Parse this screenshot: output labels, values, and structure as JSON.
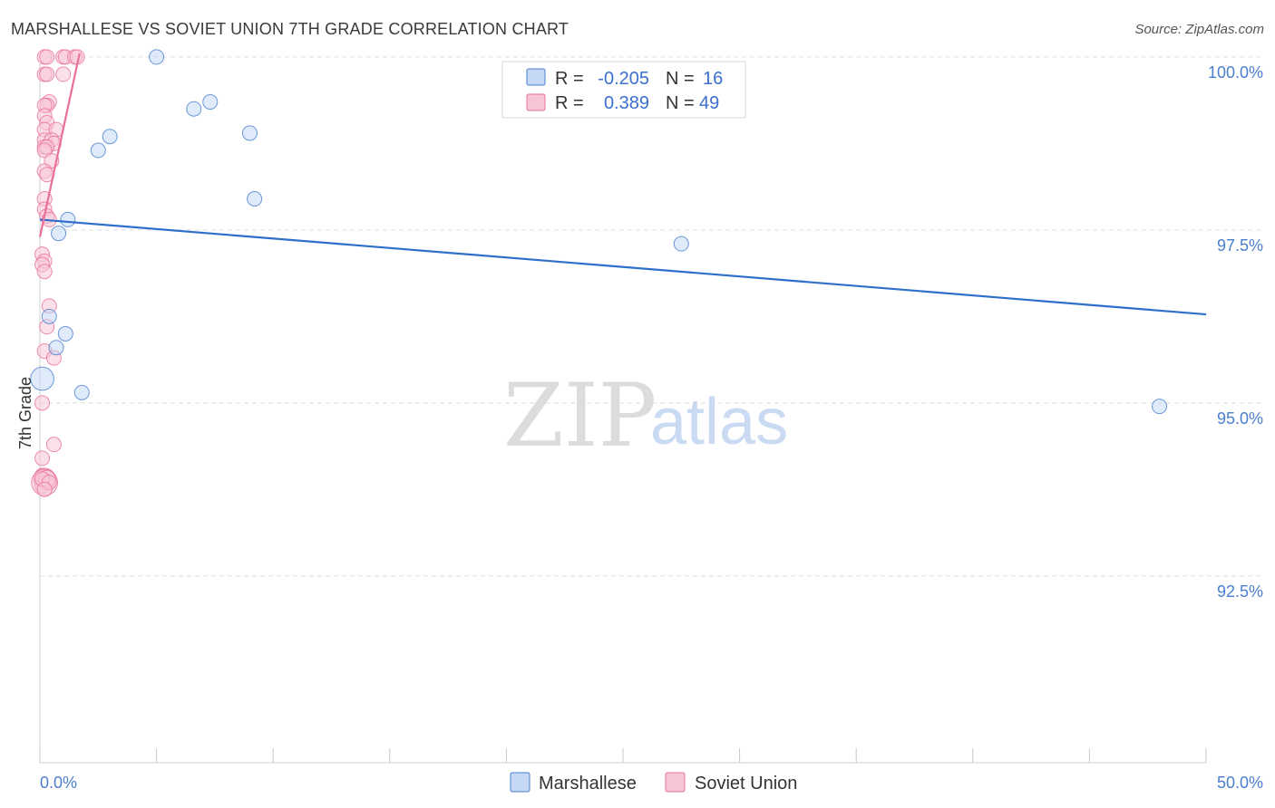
{
  "header": {
    "title": "MARSHALLESE VS SOVIET UNION 7TH GRADE CORRELATION CHART",
    "source": "Source: ZipAtlas.com"
  },
  "watermark": {
    "zip": "ZIP",
    "atlas": "atlas"
  },
  "colors": {
    "marshallese": "#4a7fd0",
    "marshallese_fill": "#c5d8f5",
    "soviet": "#e8709a",
    "soviet_fill": "#f7c6d6",
    "axis_text": "#4a7fd0",
    "grid": "#dddddd"
  },
  "legend_box": {
    "rows": [
      {
        "r_label": "R =",
        "r_value": "-0.205",
        "n_label": "N =",
        "n_value": "16"
      },
      {
        "r_label": "R =",
        "r_value": "0.389",
        "n_label": "N =",
        "n_value": "49"
      }
    ]
  },
  "bottom_legend": [
    "Marshallese",
    "Soviet Union"
  ],
  "chart_data": {
    "type": "scatter",
    "title": "MARSHALLESE VS SOVIET UNION 7TH GRADE CORRELATION CHART",
    "xlabel": "",
    "ylabel": "7th Grade",
    "xlim": [
      0,
      50
    ],
    "ylim": [
      89.8,
      100.3
    ],
    "x_tick_labels": [
      "0.0%",
      "50.0%"
    ],
    "y_ticks": [
      92.5,
      95.0,
      97.5,
      100.0
    ],
    "y_tick_labels": [
      "92.5%",
      "95.0%",
      "97.5%",
      "100.0%"
    ],
    "grid": true,
    "legend_position": "bottom",
    "series": [
      {
        "name": "Marshallese",
        "R": -0.205,
        "N": 16,
        "trend": {
          "x": [
            0.0,
            50.0
          ],
          "y": [
            97.65,
            96.28
          ]
        },
        "points": [
          {
            "x": 5.0,
            "y": 100.0,
            "s": 1
          },
          {
            "x": 6.6,
            "y": 99.25,
            "s": 1
          },
          {
            "x": 7.3,
            "y": 99.35,
            "s": 1
          },
          {
            "x": 2.5,
            "y": 98.65,
            "s": 1
          },
          {
            "x": 3.0,
            "y": 98.85,
            "s": 1
          },
          {
            "x": 9.0,
            "y": 98.9,
            "s": 1
          },
          {
            "x": 9.2,
            "y": 97.95,
            "s": 1
          },
          {
            "x": 1.2,
            "y": 97.65,
            "s": 1
          },
          {
            "x": 0.8,
            "y": 97.45,
            "s": 1
          },
          {
            "x": 27.5,
            "y": 97.3,
            "s": 1
          },
          {
            "x": 0.4,
            "y": 96.25,
            "s": 1
          },
          {
            "x": 1.1,
            "y": 96.0,
            "s": 1
          },
          {
            "x": 0.7,
            "y": 95.8,
            "s": 1
          },
          {
            "x": 0.1,
            "y": 95.35,
            "s": 1.6
          },
          {
            "x": 1.8,
            "y": 95.15,
            "s": 1
          },
          {
            "x": 48.0,
            "y": 94.95,
            "s": 1
          }
        ]
      },
      {
        "name": "Soviet Union",
        "R": 0.389,
        "N": 49,
        "trend": {
          "x": [
            0.0,
            1.7
          ],
          "y": [
            97.4,
            100.05
          ]
        },
        "points": [
          {
            "x": 0.2,
            "y": 100.0,
            "s": 1
          },
          {
            "x": 0.3,
            "y": 100.0,
            "s": 1
          },
          {
            "x": 1.0,
            "y": 100.0,
            "s": 1
          },
          {
            "x": 1.1,
            "y": 100.0,
            "s": 1
          },
          {
            "x": 1.5,
            "y": 100.0,
            "s": 1
          },
          {
            "x": 1.6,
            "y": 100.0,
            "s": 1
          },
          {
            "x": 0.2,
            "y": 99.75,
            "s": 1
          },
          {
            "x": 0.3,
            "y": 99.75,
            "s": 1
          },
          {
            "x": 1.0,
            "y": 99.75,
            "s": 1
          },
          {
            "x": 0.4,
            "y": 99.35,
            "s": 1
          },
          {
            "x": 0.3,
            "y": 99.3,
            "s": 1
          },
          {
            "x": 0.2,
            "y": 99.3,
            "s": 1
          },
          {
            "x": 0.2,
            "y": 99.15,
            "s": 1
          },
          {
            "x": 0.3,
            "y": 99.05,
            "s": 1
          },
          {
            "x": 0.2,
            "y": 98.95,
            "s": 1
          },
          {
            "x": 0.7,
            "y": 98.95,
            "s": 1
          },
          {
            "x": 0.2,
            "y": 98.8,
            "s": 1
          },
          {
            "x": 0.5,
            "y": 98.8,
            "s": 1
          },
          {
            "x": 0.6,
            "y": 98.75,
            "s": 1
          },
          {
            "x": 0.2,
            "y": 98.7,
            "s": 1
          },
          {
            "x": 0.3,
            "y": 98.7,
            "s": 1
          },
          {
            "x": 0.2,
            "y": 98.65,
            "s": 1
          },
          {
            "x": 0.5,
            "y": 98.5,
            "s": 1
          },
          {
            "x": 0.2,
            "y": 98.35,
            "s": 1
          },
          {
            "x": 0.3,
            "y": 98.3,
            "s": 1
          },
          {
            "x": 0.2,
            "y": 97.95,
            "s": 1
          },
          {
            "x": 0.2,
            "y": 97.8,
            "s": 1
          },
          {
            "x": 0.3,
            "y": 97.7,
            "s": 1
          },
          {
            "x": 0.4,
            "y": 97.65,
            "s": 1
          },
          {
            "x": 0.1,
            "y": 97.15,
            "s": 1
          },
          {
            "x": 0.2,
            "y": 97.05,
            "s": 1
          },
          {
            "x": 0.1,
            "y": 97.0,
            "s": 1
          },
          {
            "x": 0.2,
            "y": 96.9,
            "s": 1
          },
          {
            "x": 0.4,
            "y": 96.4,
            "s": 1
          },
          {
            "x": 0.3,
            "y": 96.1,
            "s": 1
          },
          {
            "x": 0.2,
            "y": 95.75,
            "s": 1
          },
          {
            "x": 0.6,
            "y": 95.65,
            "s": 1
          },
          {
            "x": 0.1,
            "y": 95.0,
            "s": 1
          },
          {
            "x": 0.6,
            "y": 94.4,
            "s": 1
          },
          {
            "x": 0.1,
            "y": 94.2,
            "s": 1
          },
          {
            "x": 0.1,
            "y": 93.95,
            "s": 1
          },
          {
            "x": 0.2,
            "y": 93.9,
            "s": 1.5
          },
          {
            "x": 0.3,
            "y": 93.85,
            "s": 1
          },
          {
            "x": 0.1,
            "y": 93.8,
            "s": 1
          },
          {
            "x": 0.2,
            "y": 93.85,
            "s": 1.8
          },
          {
            "x": 0.3,
            "y": 93.9,
            "s": 1.2
          },
          {
            "x": 0.1,
            "y": 93.9,
            "s": 1
          },
          {
            "x": 0.4,
            "y": 93.85,
            "s": 1
          },
          {
            "x": 0.2,
            "y": 93.75,
            "s": 1
          }
        ]
      }
    ]
  }
}
